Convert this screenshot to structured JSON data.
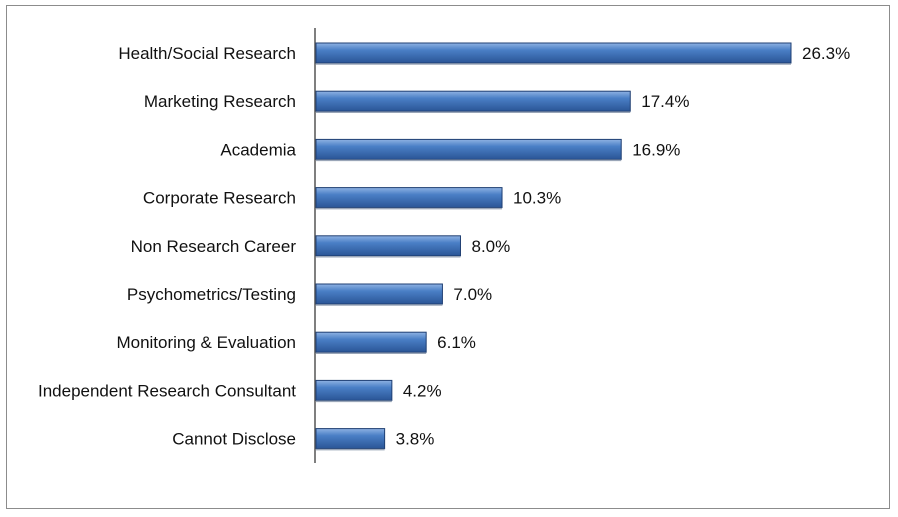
{
  "chart_data": {
    "type": "bar",
    "orientation": "horizontal",
    "categories": [
      "Health/Social Research",
      "Marketing Research",
      "Academia",
      "Corporate Research",
      "Non Research Career",
      "Psychometrics/Testing",
      "Monitoring & Evaluation",
      "Independent Research Consultant",
      "Cannot Disclose"
    ],
    "values": [
      26.3,
      17.4,
      16.9,
      10.3,
      8.0,
      7.0,
      6.1,
      4.2,
      3.8
    ],
    "value_labels": [
      "26.3%",
      "17.4%",
      "16.9%",
      "10.3%",
      "8.0%",
      "7.0%",
      "6.1%",
      "4.2%",
      "3.8%"
    ],
    "title": "",
    "xlabel": "",
    "ylabel": "",
    "xlim": [
      0,
      30
    ],
    "grid": false,
    "legend": "none",
    "bar_color": "#3b6fb6",
    "bar_edge_color": "#1f3f73"
  }
}
